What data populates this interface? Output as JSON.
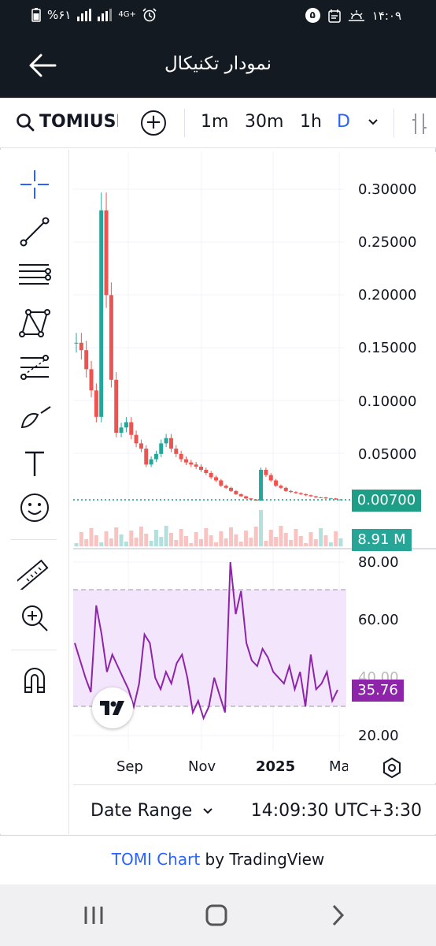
{
  "status_bar": {
    "battery": "%۶۱",
    "network": "4G+",
    "notification_count": "۵",
    "time": "۱۴:۰۹"
  },
  "app_bar": {
    "title": "نمودار تکنیکال",
    "back_icon": "arrow-left-icon"
  },
  "toolbar": {
    "symbol": "TOMIUSD",
    "intervals": [
      {
        "label": "1m",
        "active": false
      },
      {
        "label": "30m",
        "active": false
      },
      {
        "label": "1h",
        "active": false
      },
      {
        "label": "D",
        "active": true
      }
    ],
    "icons": [
      "search-icon",
      "add-circle-icon",
      "chevron-down-icon",
      "bar-chart-icon"
    ]
  },
  "drawing_tools": [
    "crosshair-icon",
    "trend-line-icon",
    "parallel-channel-icon",
    "pattern-icon",
    "fib-retracement-icon",
    "brush-icon",
    "text-icon",
    "emoji-icon",
    "ruler-icon",
    "zoom-in-icon",
    "magnet-icon"
  ],
  "price_axis": {
    "labels": [
      "0.30000",
      "0.25000",
      "0.20000",
      "0.15000",
      "0.10000",
      "0.05000"
    ],
    "last_price": "0.00700",
    "volume": "8.91 M"
  },
  "rsi_axis": {
    "labels": [
      "80.00",
      "60.00",
      "40.00",
      "20.00"
    ],
    "current": "35.76",
    "upper_band": 70,
    "lower_band": 30
  },
  "time_axis": {
    "labels": [
      {
        "text": "Sep",
        "bold": false
      },
      {
        "text": "Nov",
        "bold": false
      },
      {
        "text": "2025",
        "bold": true
      },
      {
        "text": "Ma",
        "bold": false
      }
    ]
  },
  "bottom_bar": {
    "date_range": "Date Range",
    "clock": "14:09:30 UTC+3:30"
  },
  "credit": {
    "link": "TOMI Chart",
    "suffix": " by TradingView"
  },
  "colors": {
    "up": "#26a69a",
    "down": "#ef5350",
    "rsi": "#8e24aa",
    "rsi_band": "#f3e5fb",
    "accent": "#2962ff",
    "dark_bar": "#141a22"
  },
  "chart_data": {
    "type": "candlestick",
    "price_ylim": [
      0,
      0.32
    ],
    "approx_close": [
      0.155,
      0.148,
      0.13,
      0.11,
      0.085,
      0.28,
      0.2,
      0.12,
      0.07,
      0.075,
      0.08,
      0.068,
      0.06,
      0.055,
      0.04,
      0.045,
      0.05,
      0.06,
      0.065,
      0.055,
      0.05,
      0.045,
      0.042,
      0.04,
      0.038,
      0.035,
      0.032,
      0.028,
      0.025,
      0.02,
      0.018,
      0.015,
      0.012,
      0.01,
      0.008,
      0.007,
      0.006,
      0.035,
      0.03,
      0.025,
      0.02,
      0.018,
      0.015,
      0.014,
      0.013,
      0.012,
      0.011,
      0.01,
      0.009,
      0.009,
      0.008,
      0.008,
      0.007,
      0.007
    ],
    "rsi": [
      52,
      46,
      40,
      35,
      65,
      55,
      42,
      48,
      44,
      40,
      36,
      30,
      38,
      55,
      52,
      40,
      36,
      42,
      38,
      45,
      48,
      40,
      28,
      32,
      26,
      30,
      40,
      34,
      28,
      80,
      62,
      70,
      52,
      46,
      44,
      50,
      47,
      42,
      40,
      38,
      44,
      36,
      42,
      30,
      48,
      36,
      38,
      42,
      32,
      35.76
    ]
  }
}
